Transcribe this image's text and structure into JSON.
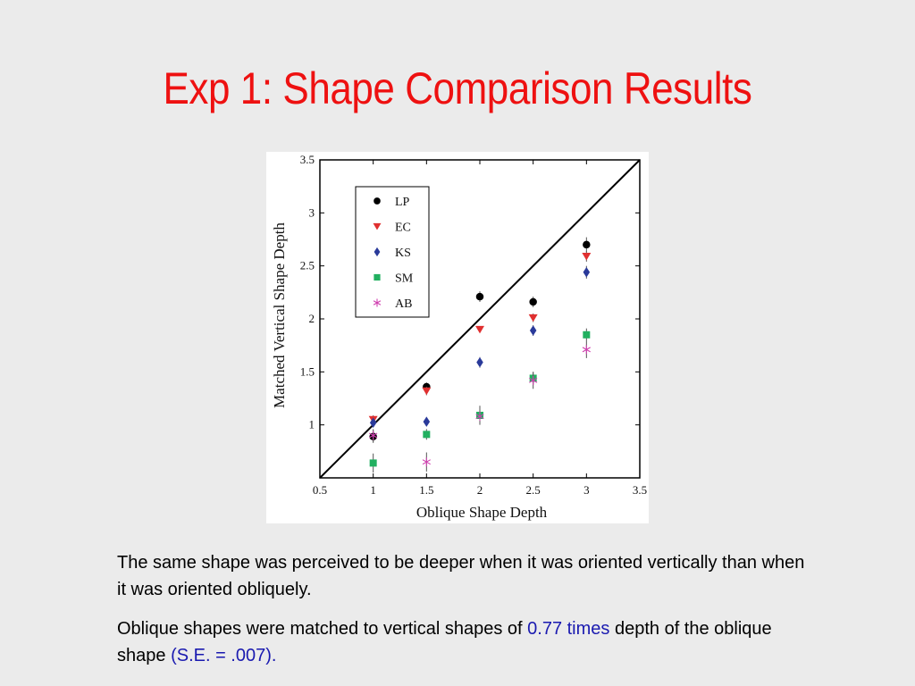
{
  "slide": {
    "title": "Exp 1: Shape Comparison Results"
  },
  "text": {
    "para1": "The same shape was perceived to be deeper when it was oriented vertically than when it was oriented obliquely.",
    "para2_a": "Oblique shapes were matched to vertical shapes of ",
    "para2_hl1": "0.77 times",
    "para2_b": " depth of the oblique shape ",
    "para2_hl2": "(S.E. = .007).",
    "highlight_color": "#1a1ab0",
    "title_color": "#ee1111"
  },
  "chart_data": {
    "type": "scatter",
    "xlabel": "Oblique Shape Depth",
    "ylabel": "Matched Vertical Shape Depth",
    "xlim": [
      0.5,
      3.5
    ],
    "ylim": [
      0.5,
      3.5
    ],
    "xticks": [
      "0.5",
      "1",
      "1.5",
      "2",
      "2.5",
      "3",
      "3.5"
    ],
    "yticks": [
      "1",
      "1.5",
      "2",
      "2.5",
      "3",
      "3.5"
    ],
    "x": [
      1,
      1.5,
      2,
      2.5,
      3
    ],
    "legend_position": "top-left",
    "identity_line": true,
    "series": [
      {
        "name": "LP",
        "marker": "circle",
        "color": "#000000",
        "values": [
          0.89,
          1.36,
          2.21,
          2.16,
          2.7
        ],
        "err": [
          0.06,
          0.04,
          0.05,
          0.05,
          0.07
        ]
      },
      {
        "name": "EC",
        "marker": "triangle-down",
        "color": "#e03030",
        "values": [
          1.05,
          1.32,
          1.9,
          2.01,
          2.59
        ],
        "err": [
          0.04,
          0.04,
          0.03,
          0.04,
          0.05
        ]
      },
      {
        "name": "KS",
        "marker": "diamond",
        "color": "#2a3a9a",
        "values": [
          1.02,
          1.03,
          1.59,
          1.89,
          2.44
        ],
        "err": [
          0.04,
          0.03,
          0.05,
          0.05,
          0.06
        ]
      },
      {
        "name": "SM",
        "marker": "square",
        "color": "#22b060",
        "values": [
          0.64,
          0.91,
          1.09,
          1.44,
          1.85
        ],
        "err": [
          0.09,
          0.05,
          0.09,
          0.06,
          0.06
        ]
      },
      {
        "name": "AB",
        "marker": "asterisk",
        "color": "#d040b0",
        "values": [
          0.9,
          0.65,
          1.08,
          1.42,
          1.71
        ],
        "err": [
          0.06,
          0.09,
          0.07,
          0.08,
          0.08
        ]
      }
    ]
  }
}
